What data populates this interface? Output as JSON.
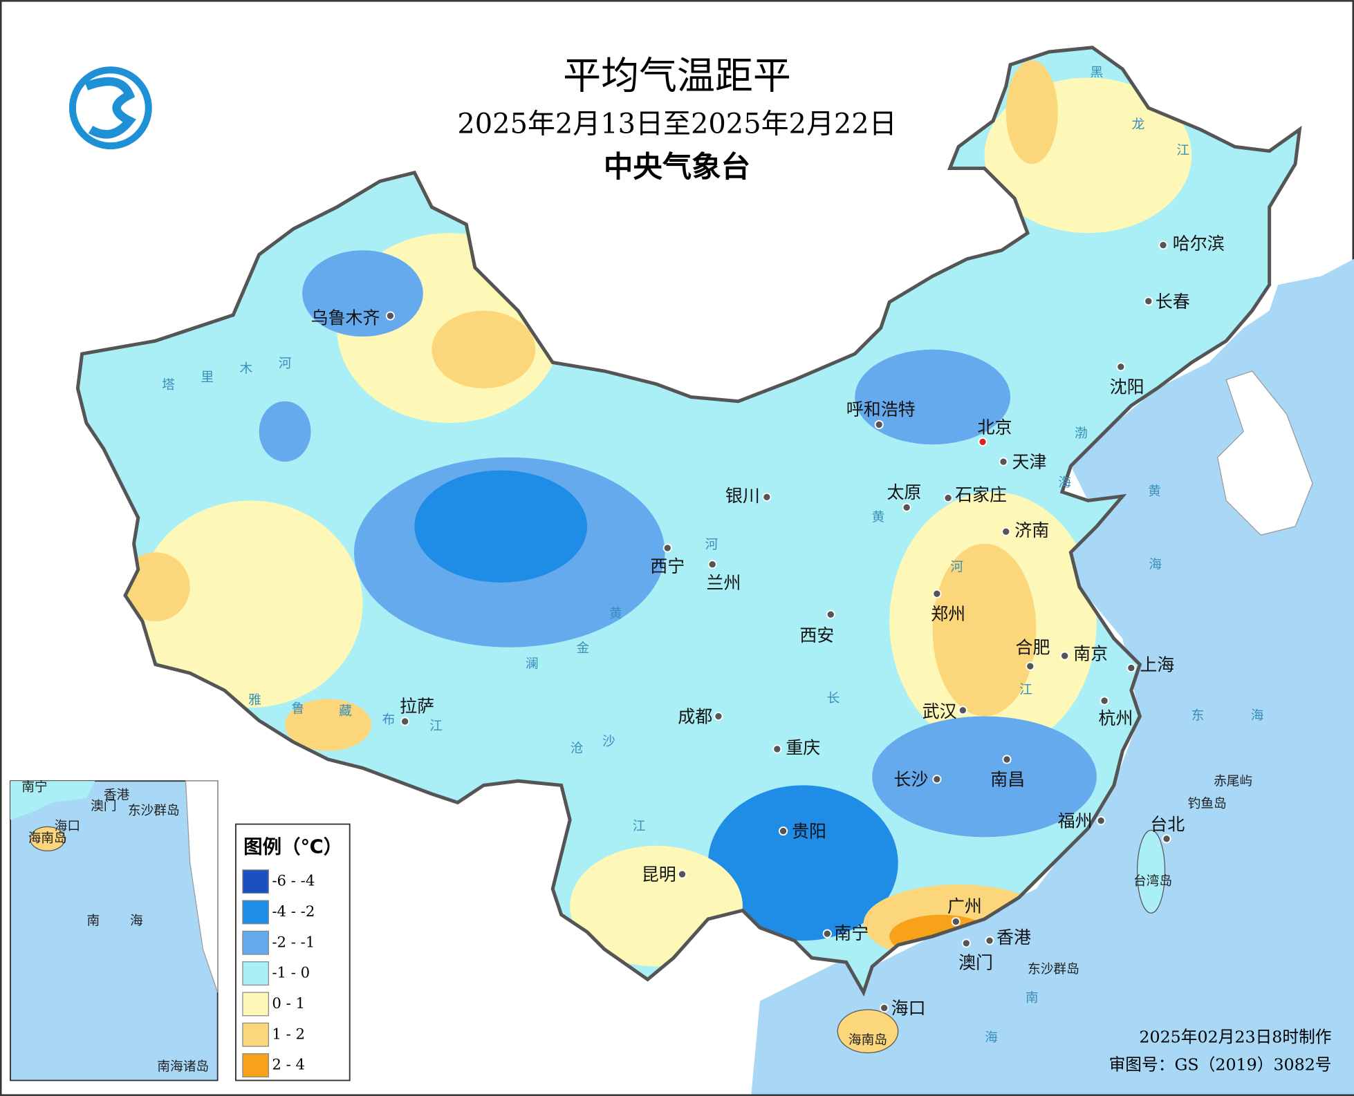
{
  "header": {
    "title": "平均气温距平",
    "period": "2025年2月13日至2025年2月22日",
    "agency": "中央气象台"
  },
  "legend": {
    "title": "图例（℃）",
    "items": [
      {
        "label": "-6 - -4",
        "color": "#1a50c0"
      },
      {
        "label": "-4 - -2",
        "color": "#1f8ce6"
      },
      {
        "label": "-2 - -1",
        "color": "#66aaee"
      },
      {
        "label": "-1 - 0",
        "color": "#aaeef6"
      },
      {
        "label": "0 - 1",
        "color": "#fdf8b8"
      },
      {
        "label": "1 - 2",
        "color": "#fbd67a"
      },
      {
        "label": "2 - 4",
        "color": "#f8a21a"
      }
    ]
  },
  "cities": [
    "乌鲁木齐",
    "哈尔滨",
    "长春",
    "沈阳",
    "呼和浩特",
    "北京",
    "天津",
    "太原",
    "石家庄",
    "银川",
    "济南",
    "西宁",
    "兰州",
    "郑州",
    "西安",
    "合肥",
    "南京",
    "上海",
    "拉萨",
    "成都",
    "武汉",
    "杭州",
    "重庆",
    "长沙",
    "南昌",
    "贵阳",
    "福州",
    "台北",
    "昆明",
    "广州",
    "南宁",
    "香港",
    "澳门",
    "海口"
  ],
  "water_labels": [
    "塔",
    "里",
    "木",
    "河",
    "雅",
    "鲁",
    "藏",
    "布",
    "江",
    "黄",
    "河",
    "长",
    "江",
    "澜",
    "沧",
    "江",
    "金",
    "沙",
    "黄",
    "河",
    "黑",
    "龙",
    "江",
    "渤",
    "海",
    "黄",
    "海",
    "东",
    "海",
    "南",
    "海"
  ],
  "island_labels": [
    "赤尾屿",
    "钓鱼岛",
    "台湾岛",
    "东沙群岛",
    "海南岛"
  ],
  "inset": {
    "title": "南海诸岛",
    "labels": [
      "南宁",
      "香港",
      "澳门",
      "东沙群岛",
      "海口",
      "海南岛",
      "南",
      "海"
    ]
  },
  "footer": {
    "made": "2025年02月23日8时制作",
    "approval": "审图号：GS（2019）3082号"
  }
}
